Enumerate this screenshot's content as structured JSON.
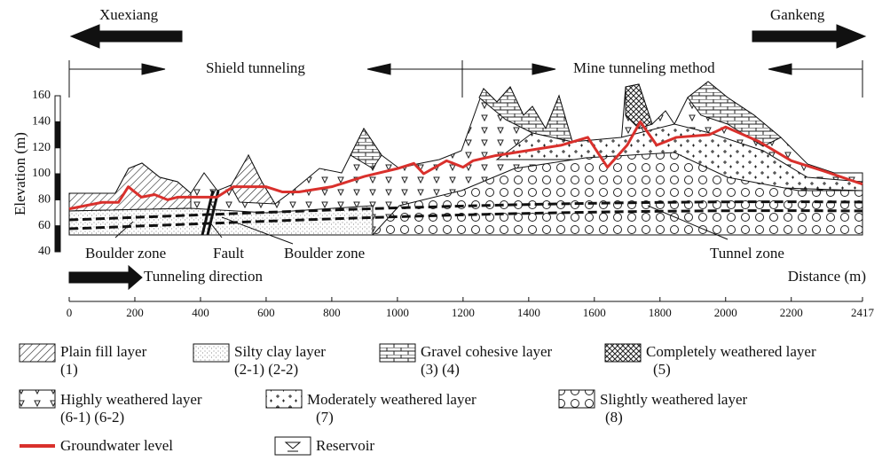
{
  "chart_data": {
    "type": "line",
    "ylabel": "Elevation (m)",
    "xlabel": "Distance (m)",
    "directions": {
      "left": "Xuexiang",
      "right": "Gankeng",
      "shield": "Shield tunneling",
      "mine": "Mine tunneling method",
      "tunneling": "Tunneling direction"
    },
    "annotations": [
      "Boulder zone",
      "Fault",
      "Boulder zone",
      "Tunnel zone"
    ],
    "xlim": [
      0,
      2417
    ],
    "xticks": [
      0,
      200,
      400,
      600,
      800,
      1000,
      1200,
      1400,
      1600,
      1800,
      2000,
      2200,
      2417
    ],
    "ylim": [
      40,
      160
    ],
    "yticks": [
      40,
      60,
      80,
      100,
      120,
      140,
      160
    ],
    "x": [
      0,
      100,
      150,
      180,
      220,
      260,
      300,
      330,
      400,
      450,
      500,
      600,
      650,
      700,
      800,
      900,
      1000,
      1050,
      1080,
      1150,
      1200,
      1230,
      1300,
      1400,
      1500,
      1580,
      1640,
      1700,
      1740,
      1790,
      1850,
      1950,
      2000,
      2100,
      2200,
      2300,
      2417
    ],
    "series": [
      {
        "name": "Groundwater level",
        "color": "#d9302c",
        "values": [
          73,
          78,
          78,
          90,
          82,
          84,
          80,
          82,
          82,
          82,
          90,
          90,
          86,
          86,
          90,
          98,
          104,
          108,
          100,
          110,
          105,
          110,
          114,
          118,
          122,
          128,
          105,
          122,
          140,
          122,
          128,
          130,
          136,
          125,
          110,
          102,
          92
        ]
      }
    ],
    "layers": [
      {
        "label": "Plain fill layer",
        "code": "(1)"
      },
      {
        "label": "Silty clay layer",
        "code": "(2-1) (2-2)"
      },
      {
        "label": "Gravel cohesive layer",
        "code": "(3) (4)"
      },
      {
        "label": "Completely weathered layer",
        "code": "(5)"
      },
      {
        "label": "Highly weathered layer",
        "code": "(6-1) (6-2)"
      },
      {
        "label": "Moderately weathered layer",
        "code": "(7)"
      },
      {
        "label": "Slightly weathered layer",
        "code": "(8)"
      },
      {
        "label": "Reservoir",
        "code": null
      }
    ]
  }
}
